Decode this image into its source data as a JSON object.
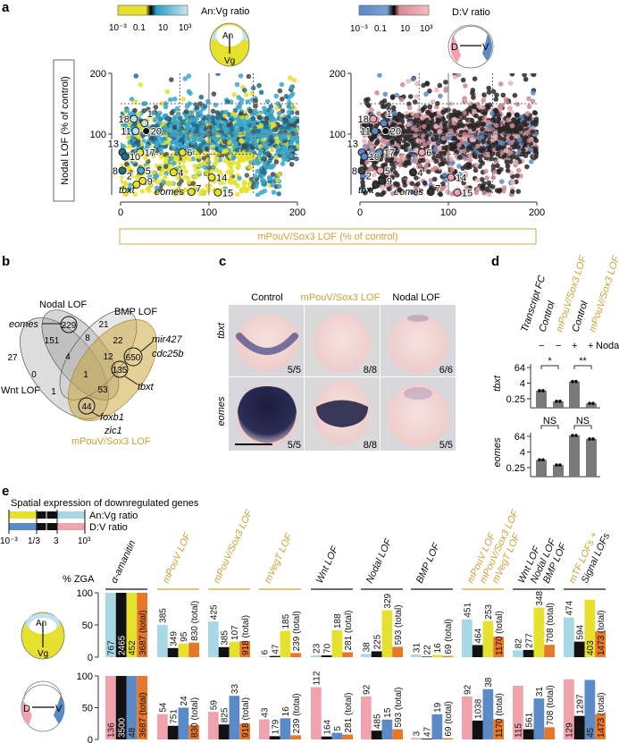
{
  "panel_labels": {
    "a": "a",
    "b": "b",
    "c": "c",
    "d": "d",
    "e": "e"
  },
  "colors": {
    "gold": "#c9a133",
    "cyan": "#3aa8cc",
    "light_cyan": "#bfe3ee",
    "yellow": "#e6e12e",
    "pink": "#f0a3ad",
    "blue": "#5b8ac6",
    "orange": "#e8772a",
    "black": "#111111"
  },
  "panel_a": {
    "left_colorbar": {
      "title": "An:Vg ratio",
      "ticks": [
        "10⁻³",
        "0.1",
        "10",
        "10³"
      ]
    },
    "right_colorbar": {
      "title": "D:V ratio",
      "ticks": [
        "10⁻³",
        "0.1",
        "10",
        "10³"
      ]
    },
    "embryo_left": {
      "top": "An",
      "bottom": "Vg"
    },
    "embryo_right": {
      "left": "D",
      "right": "V"
    },
    "ylabel": "Nodal LOF (% of control)",
    "xlabel": "mPouV/Sox3 LOF (% of control)",
    "x_ticks": [
      "0",
      "100",
      "200"
    ],
    "y_ticks": [
      "200",
      "100"
    ],
    "gene_labels": {
      "tbxt": "tbxt",
      "eomes": "eomes"
    }
  },
  "panel_b": {
    "sets": {
      "nodal": "Nodal LOF",
      "bmp": "BMP LOF",
      "wnt": "Wnt LOF",
      "mpouv": "mPouV/Sox3 LOF"
    },
    "counts": {
      "n_only": "229",
      "b_only": "21",
      "w_only": "27",
      "m_only": "650",
      "nw": "151",
      "nb": "8",
      "bm": "22",
      "nwb": "4",
      "nbm": "12",
      "wm": "53",
      "wm_only": "1",
      "w0": "0",
      "all": "1",
      "nm": "135",
      "m44": "44"
    },
    "genes": {
      "eomes": "eomes",
      "mir427": "mir427",
      "cdc25b": "cdc25b",
      "tbxt": "tbxt",
      "foxb1": "foxb1",
      "zic1": "zic1"
    }
  },
  "panel_c": {
    "columns": [
      "Control",
      "mPouV/Sox3 LOF",
      "Nodal LOF"
    ],
    "rows": [
      "tbxt",
      "eomes"
    ],
    "fractions": [
      [
        "5/5",
        "8/8",
        "6/6"
      ],
      [
        "5/5",
        "8/8",
        "5/5"
      ]
    ]
  },
  "panel_d": {
    "headers": [
      "Transcript FC",
      "Control",
      "mPouV/Sox3 LOF",
      "Control",
      "mPouV/Sox3 LOF"
    ],
    "signs": [
      "−",
      "−",
      "+",
      "+"
    ],
    "sign_label": "Nodal",
    "y_ticks": [
      "64",
      "4",
      "0.25"
    ]
  },
  "panel_e": {
    "title": "Spatial expression of downregulated genes",
    "legend": {
      "anvg": "An:Vg ratio",
      "dv": "D:V ratio",
      "ticks": [
        "10⁻³",
        "1/3",
        "3",
        "10³"
      ]
    },
    "ylabel": "% ZGA",
    "y_ticks": [
      "100",
      "50",
      "0"
    ],
    "total_suffix": " (total)",
    "embryo_top": {
      "top": "An",
      "bottom": "Vg"
    },
    "embryo_bottom": {
      "left": "D",
      "right": "V"
    }
  },
  "chart_data": [
    {
      "type": "scatter",
      "panel": "a-left",
      "xlabel": "mPouV/Sox3 LOF (% of control)",
      "ylabel": "Nodal LOF (% of control)",
      "xlim": [
        0,
        200
      ],
      "ylim": [
        0,
        200
      ],
      "reference_lines": {
        "solid_x": 100,
        "solid_y": 100,
        "dotted_x": [
          67,
          150
        ],
        "dotted_y": [
          67,
          150
        ]
      },
      "color_scale": "An:Vg ratio",
      "labeled_points": [
        {
          "label": "18",
          "x": 15,
          "y": 125,
          "color": "#bfe3ee"
        },
        {
          "label": "1",
          "x": 27,
          "y": 118,
          "color": "#bfe3ee"
        },
        {
          "label": "11",
          "x": 17,
          "y": 105,
          "color": "#bfe3ee"
        },
        {
          "label": "20",
          "x": 29,
          "y": 105,
          "color": "#111111"
        },
        {
          "label": "13",
          "x": 2,
          "y": 70,
          "color": "#1f6f8f"
        },
        {
          "label": "17",
          "x": 22,
          "y": 70,
          "color": "#e6e12e"
        },
        {
          "label": "6",
          "x": 70,
          "y": 70,
          "color": "#e6e12e"
        },
        {
          "label": "10",
          "x": 5,
          "y": 63,
          "color": "#1f6f8f"
        },
        {
          "label": "8",
          "x": 2,
          "y": 40,
          "color": "#1f6f8f"
        },
        {
          "label": "5",
          "x": 23,
          "y": 40,
          "color": "#3aa8cc"
        },
        {
          "label": "4",
          "x": 60,
          "y": 37,
          "color": "#e6e12e"
        },
        {
          "label": "2",
          "x": 18,
          "y": 17,
          "color": "#e6e12e"
        },
        {
          "label": "9",
          "x": 25,
          "y": 23,
          "color": "#e6e12e"
        },
        {
          "label": "14",
          "x": 103,
          "y": 29,
          "color": "#e6e12e"
        },
        {
          "label": "7",
          "x": 80,
          "y": 5,
          "color": "#e6e12e"
        },
        {
          "label": "15",
          "x": 110,
          "y": 4,
          "color": "#e6e12e"
        }
      ]
    },
    {
      "type": "scatter",
      "panel": "a-right",
      "xlabel": "mPouV/Sox3 LOF (% of control)",
      "ylabel": "Nodal LOF (% of control)",
      "xlim": [
        0,
        200
      ],
      "ylim": [
        0,
        200
      ],
      "reference_lines": {
        "solid_x": 100,
        "solid_y": 100,
        "dotted_x": [
          67,
          150
        ],
        "dotted_y": [
          67,
          150
        ]
      },
      "color_scale": "D:V ratio",
      "labeled_points": [
        {
          "label": "18",
          "x": 15,
          "y": 125,
          "color": "#f0a3ad"
        },
        {
          "label": "1",
          "x": 27,
          "y": 118,
          "color": "#5b8ac6"
        },
        {
          "label": "11",
          "x": 17,
          "y": 105,
          "color": "#5b8ac6"
        },
        {
          "label": "20",
          "x": 29,
          "y": 105,
          "color": "#111111"
        },
        {
          "label": "13",
          "x": 2,
          "y": 70,
          "color": "#5b8ac6"
        },
        {
          "label": "17",
          "x": 22,
          "y": 70,
          "color": "#5b8ac6"
        },
        {
          "label": "6",
          "x": 70,
          "y": 70,
          "color": "#f0a3ad"
        },
        {
          "label": "10",
          "x": 5,
          "y": 63,
          "color": "#5b8ac6"
        },
        {
          "label": "8",
          "x": 2,
          "y": 40,
          "color": "#444444"
        },
        {
          "label": "5",
          "x": 23,
          "y": 40,
          "color": "#f0a3ad"
        },
        {
          "label": "4",
          "x": 60,
          "y": 37,
          "color": "#333333"
        },
        {
          "label": "2",
          "x": 18,
          "y": 17,
          "color": "#333333"
        },
        {
          "label": "9",
          "x": 25,
          "y": 23,
          "color": "#333333"
        },
        {
          "label": "14",
          "x": 103,
          "y": 29,
          "color": "#f0a3ad"
        },
        {
          "label": "7",
          "x": 80,
          "y": 5,
          "color": "#333333"
        },
        {
          "label": "15",
          "x": 110,
          "y": 4,
          "color": "#f0a3ad"
        }
      ]
    },
    {
      "type": "bar",
      "panel": "d-tbxt",
      "ylabel": "tbxt",
      "scale": "log2",
      "categories": [
        "Control −Nodal",
        "mPouV/Sox3 LOF −Nodal",
        "Control +Nodal",
        "mPouV/Sox3 LOF +Nodal"
      ],
      "values": [
        1.05,
        0.16,
        5.3,
        0.11
      ],
      "ylim": [
        0.05,
        100
      ],
      "significance": [
        "*",
        "**"
      ]
    },
    {
      "type": "bar",
      "panel": "d-eomes",
      "ylabel": "eomes",
      "scale": "log2",
      "categories": [
        "Control −Nodal",
        "mPouV/Sox3 LOF −Nodal",
        "Control +Nodal",
        "mPouV/Sox3 LOF +Nodal"
      ],
      "values": [
        1.0,
        0.4,
        75,
        40
      ],
      "ylim": [
        0.05,
        100
      ],
      "significance": [
        "NS",
        "NS"
      ]
    },
    {
      "type": "bar",
      "panel": "e",
      "ylabel": "% ZGA",
      "ylim": [
        0,
        100
      ],
      "groups": [
        {
          "label": [
            "α-amanitin"
          ],
          "colors": [
            "#111111"
          ],
          "line": "#111111"
        },
        {
          "label": [
            "mPouV LOF"
          ],
          "colors": [
            "#c9a133"
          ],
          "line": "#c9a133"
        },
        {
          "label": [
            "mPouV/Sox3 LOF"
          ],
          "colors": [
            "#c9a133"
          ],
          "line": "#c9a133"
        },
        {
          "label": [
            "mVegT LOF"
          ],
          "colors": [
            "#c9a133"
          ],
          "line": "#c9a133"
        },
        {
          "label": [
            "Wnt LOF"
          ],
          "colors": [
            "#111111"
          ],
          "line": "#111111"
        },
        {
          "label": [
            "Nodal LOF"
          ],
          "colors": [
            "#111111"
          ],
          "line": "#111111"
        },
        {
          "label": [
            "BMP LOF"
          ],
          "colors": [
            "#111111"
          ],
          "line": "#111111"
        },
        {
          "label": [
            "mPouV LOF",
            "mPouV/Sox3 LOF",
            "mVegT LOF"
          ],
          "colors": [
            "#c9a133",
            "#c9a133",
            "#c9a133"
          ],
          "line": "#c9a133"
        },
        {
          "label": [
            "Wnt LOF",
            "Nodal LOF",
            "BMP LOF"
          ],
          "colors": [
            "#111111",
            "#111111",
            "#111111"
          ],
          "line": "#111111"
        },
        {
          "label": [
            "mTF LOFs +",
            "Signal LOFs"
          ],
          "colors": [
            "#c9a133",
            "#111111"
          ],
          "line": "#111111"
        }
      ],
      "rows": [
        {
          "name": "An:Vg",
          "bar_colors": [
            "#a8d8e6",
            "#111111",
            "#e6e12e",
            "#e8772a"
          ],
          "counts": [
            [
              767,
              2465,
              452,
              3687
            ],
            [
              385,
              349,
              95,
              830
            ],
            [
              425,
              385,
              107,
              918
            ],
            [
              6,
              47,
              185,
              239
            ],
            [
              23,
              70,
              188,
              281
            ],
            [
              38,
              225,
              329,
              593
            ],
            [
              31,
              22,
              16,
              69
            ],
            [
              451,
              464,
              253,
              1170
            ],
            [
              82,
              277,
              348,
              708
            ],
            [
              474,
              594,
              403,
              1473
            ]
          ]
        },
        {
          "name": "D:V",
          "bar_colors": [
            "#f0a3ad",
            "#111111",
            "#5b8ac6",
            "#e8772a"
          ],
          "counts": [
            [
              136,
              3500,
              48,
              3687
            ],
            [
              54,
              751,
              24,
              830
            ],
            [
              59,
              825,
              33,
              918
            ],
            [
              43,
              179,
              16,
              239
            ],
            [
              112,
              164,
              5,
              281
            ],
            [
              92,
              485,
              15,
              593
            ],
            [
              3,
              47,
              19,
              69
            ],
            [
              92,
              1038,
              38,
              1170
            ],
            [
              115,
              561,
              31,
              708
            ],
            [
              129,
              1297,
              45,
              1473
            ]
          ]
        }
      ]
    }
  ]
}
